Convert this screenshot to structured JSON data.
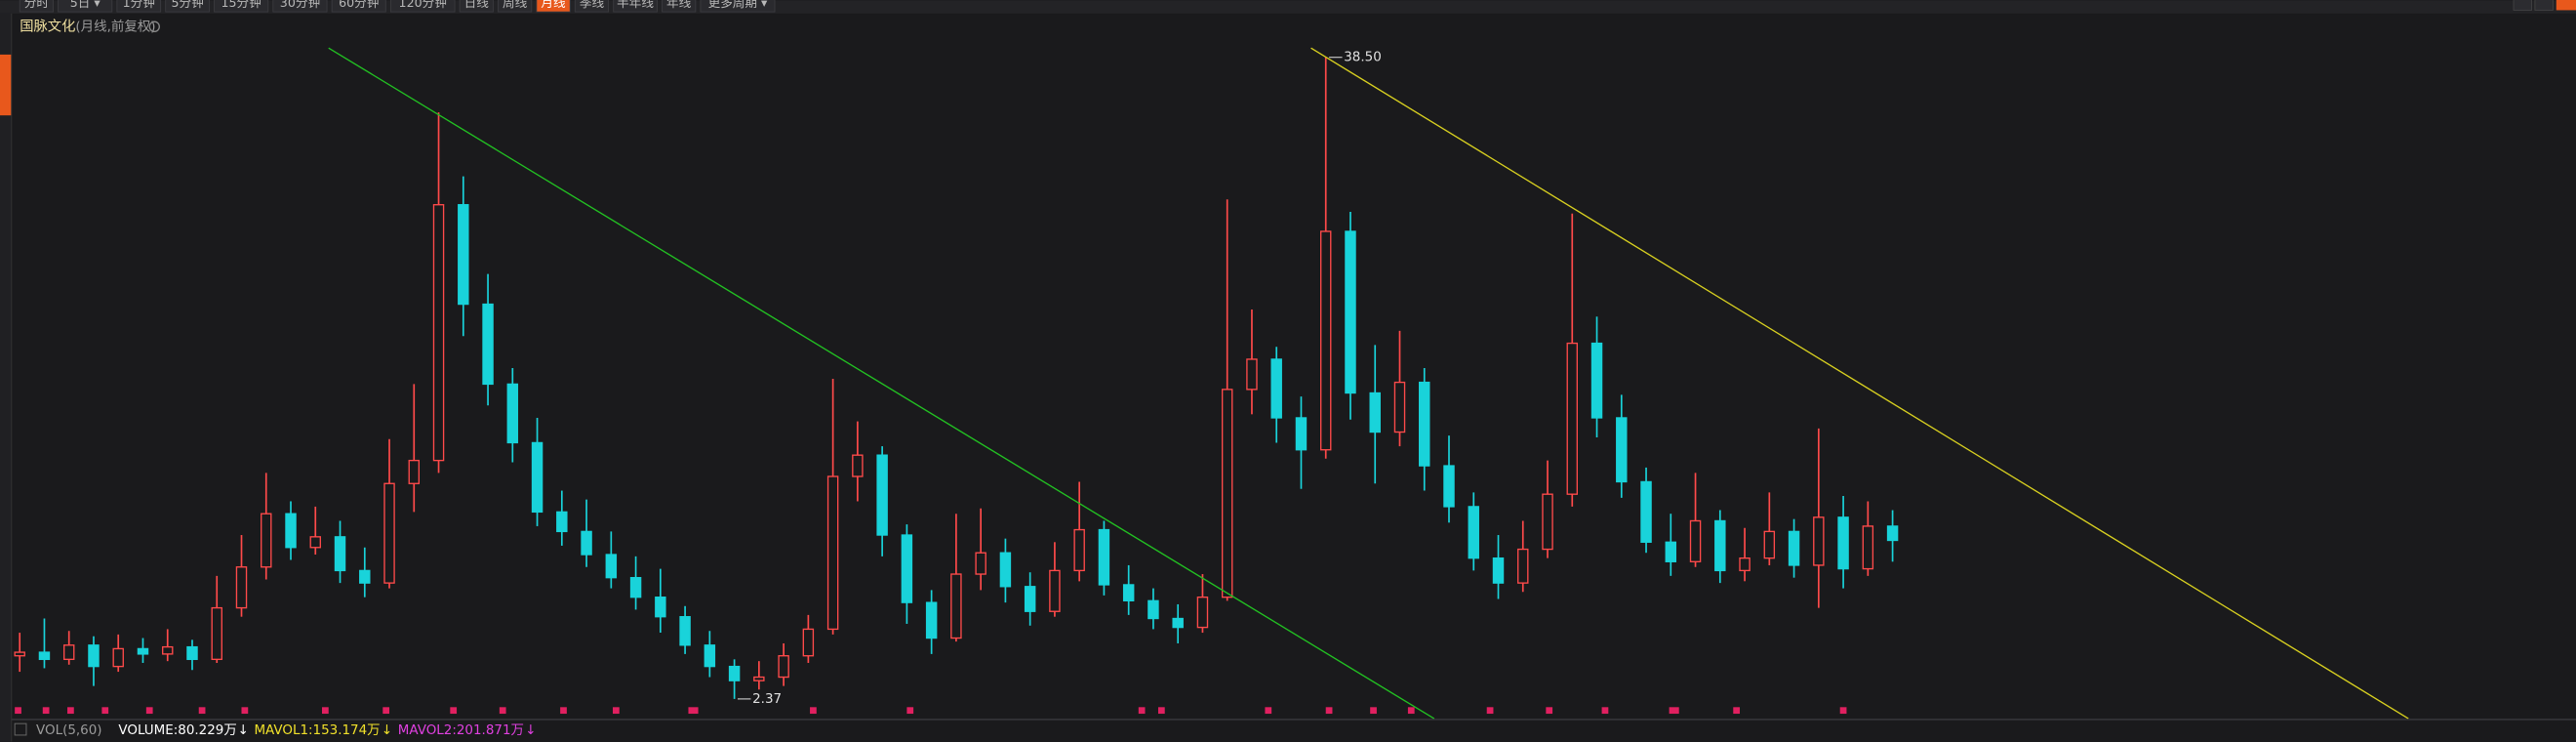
{
  "toolbar": {
    "tabs": [
      {
        "label": "分时",
        "active": false
      },
      {
        "label": "5日 ▾",
        "active": false
      },
      {
        "label": "1分钟",
        "active": false
      },
      {
        "label": "5分钟",
        "active": false
      },
      {
        "label": "15分钟",
        "active": false
      },
      {
        "label": "30分钟",
        "active": false
      },
      {
        "label": "60分钟",
        "active": false
      },
      {
        "label": "120分钟",
        "active": false
      },
      {
        "label": "日线",
        "active": false
      },
      {
        "label": "周线",
        "active": false
      },
      {
        "label": "月线",
        "active": true
      },
      {
        "label": "季线",
        "active": false
      },
      {
        "label": "半年线",
        "active": false
      },
      {
        "label": "年线",
        "active": false
      },
      {
        "label": "更多周期 ▾",
        "active": false
      }
    ]
  },
  "chart_data": {
    "type": "candlestick",
    "title": "国脉文化",
    "subtitle": "(月线,前复权)",
    "up_color": "#ff4a4a",
    "down_color": "#19d3da",
    "ylim": [
      1.26,
      40.6
    ],
    "open": [
      4.8,
      5.0,
      4.6,
      5.4,
      4.2,
      5.2,
      4.9,
      5.3,
      4.6,
      7.5,
      9.8,
      12.8,
      10.9,
      11.5,
      9.6,
      8.9,
      14.5,
      15.8,
      30.2,
      24.6,
      20.1,
      16.8,
      12.9,
      11.8,
      10.5,
      9.2,
      8.1,
      7.0,
      5.4,
      4.2,
      3.4,
      3.6,
      4.8,
      6.3,
      14.9,
      16.1,
      11.6,
      7.8,
      5.8,
      9.4,
      10.6,
      8.7,
      7.3,
      9.6,
      11.9,
      8.8,
      7.9,
      6.9,
      6.4,
      8.1,
      19.8,
      21.5,
      18.2,
      16.4,
      28.7,
      19.6,
      17.4,
      20.2,
      15.5,
      13.2,
      10.3,
      8.9,
      10.8,
      13.9,
      22.4,
      18.2,
      14.6,
      11.2,
      10.1,
      12.4,
      9.6,
      10.3,
      11.8,
      9.9,
      12.6,
      9.7,
      12.1
    ],
    "high": [
      6.1,
      6.9,
      6.2,
      5.9,
      6.0,
      5.8,
      6.3,
      5.7,
      9.3,
      11.6,
      15.1,
      13.5,
      13.2,
      12.4,
      10.9,
      17.0,
      20.1,
      35.4,
      31.8,
      26.3,
      21.0,
      18.2,
      14.1,
      13.6,
      11.8,
      10.4,
      9.7,
      7.6,
      6.2,
      4.6,
      4.5,
      5.5,
      7.1,
      20.4,
      18.0,
      16.6,
      12.2,
      8.5,
      12.8,
      13.1,
      11.4,
      9.5,
      11.2,
      14.6,
      12.4,
      9.9,
      8.6,
      7.7,
      9.4,
      30.5,
      24.3,
      22.2,
      19.4,
      38.5,
      29.8,
      22.3,
      23.1,
      21.0,
      17.2,
      14.0,
      11.6,
      12.4,
      15.8,
      29.7,
      23.9,
      19.5,
      15.4,
      12.8,
      15.1,
      13.0,
      12.0,
      14.0,
      12.5,
      17.6,
      13.8,
      13.5,
      13.0
    ],
    "low": [
      3.9,
      4.1,
      4.3,
      3.1,
      3.9,
      4.4,
      4.5,
      4.0,
      4.4,
      7.0,
      9.1,
      10.2,
      10.5,
      8.9,
      8.1,
      8.6,
      12.9,
      15.1,
      22.8,
      18.9,
      15.7,
      12.1,
      11.0,
      9.8,
      8.6,
      7.4,
      6.1,
      4.9,
      3.6,
      2.37,
      2.9,
      3.1,
      4.4,
      6.0,
      13.5,
      10.4,
      6.6,
      4.9,
      5.6,
      8.5,
      7.8,
      6.5,
      7.0,
      9.0,
      8.2,
      7.1,
      6.3,
      5.5,
      6.1,
      7.9,
      18.4,
      16.8,
      14.2,
      15.9,
      18.1,
      14.5,
      16.6,
      14.1,
      12.3,
      9.6,
      8.0,
      8.4,
      10.3,
      13.2,
      17.1,
      13.7,
      10.6,
      9.3,
      9.8,
      8.9,
      9.0,
      9.9,
      9.2,
      7.5,
      8.6,
      9.3,
      10.1
    ],
    "close": [
      5.0,
      4.6,
      5.4,
      4.2,
      5.2,
      4.9,
      5.3,
      4.6,
      7.5,
      9.8,
      12.8,
      10.9,
      11.5,
      9.6,
      8.9,
      14.5,
      15.8,
      30.2,
      24.6,
      20.1,
      16.8,
      12.9,
      11.8,
      10.5,
      9.2,
      8.1,
      7.0,
      5.4,
      4.2,
      3.4,
      3.6,
      4.8,
      6.3,
      14.9,
      16.1,
      11.6,
      7.8,
      5.8,
      9.4,
      10.6,
      8.7,
      7.3,
      9.6,
      11.9,
      8.8,
      7.9,
      6.9,
      6.4,
      8.1,
      19.8,
      21.5,
      18.2,
      16.4,
      28.7,
      19.6,
      17.4,
      20.2,
      15.5,
      13.2,
      10.3,
      8.9,
      10.8,
      13.9,
      22.4,
      18.2,
      14.6,
      11.2,
      10.1,
      12.4,
      9.6,
      10.3,
      11.8,
      9.9,
      12.6,
      9.7,
      12.1,
      11.3
    ],
    "max_label": {
      "value": 38.5,
      "label": "38.50"
    },
    "min_label": {
      "value": 2.37,
      "label": "2.37"
    }
  },
  "volume_legend": {
    "name": "VOL(5,60)",
    "items": [
      {
        "text": "VOLUME:80.229万",
        "color": "#ffffff"
      },
      {
        "text": "MAVOL1:153.174万",
        "color": "#f0e02a"
      },
      {
        "text": "MAVOL2:201.871万",
        "color": "#e040e0"
      }
    ],
    "arrow": "↓"
  }
}
